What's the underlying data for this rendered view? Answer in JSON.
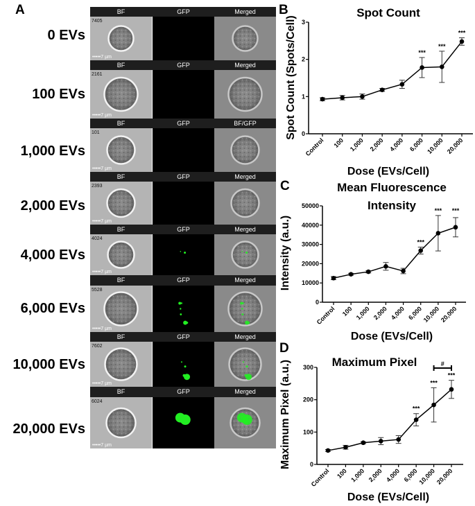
{
  "panel_a": {
    "letter": "A",
    "scale_bar": "7 µm",
    "rows": [
      {
        "dose": "0 EVs",
        "cell_id": "7405",
        "headers": [
          "BF",
          "GFP",
          "Merged"
        ]
      },
      {
        "dose": "100 EVs",
        "cell_id": "2161",
        "headers": [
          "BF",
          "GFP",
          "Merged"
        ]
      },
      {
        "dose": "1,000 EVs",
        "cell_id": "101",
        "headers": [
          "BF",
          "GFP",
          "BF/GFP"
        ]
      },
      {
        "dose": "2,000 EVs",
        "cell_id": "2393",
        "headers": [
          "BF",
          "GFP",
          "Merged"
        ]
      },
      {
        "dose": "4,000 EVs",
        "cell_id": "4024",
        "headers": [
          "BF",
          "GFP",
          "Merged"
        ]
      },
      {
        "dose": "6,000 EVs",
        "cell_id": "5528",
        "headers": [
          "BF",
          "GFP",
          "Merged"
        ]
      },
      {
        "dose": "10,000 EVs",
        "cell_id": "7602",
        "headers": [
          "BF",
          "GFP",
          "Merged"
        ]
      },
      {
        "dose": "20,000 EVs",
        "cell_id": "6024",
        "headers": [
          "BF",
          "GFP",
          "Merged"
        ]
      }
    ],
    "colors": {
      "gfp": "#22ee22",
      "header_bg": "#1e1e1e"
    }
  },
  "chart_data": [
    {
      "letter": "B",
      "type": "line",
      "title": [
        "Spot Count"
      ],
      "xlabel": "Dose (EVs/Cell)",
      "ylabel": "Spot Count (Spots/Cell)",
      "categories": [
        "Control",
        "100",
        "1,000",
        "2,000",
        "4,000",
        "6,000",
        "10,000",
        "20,000"
      ],
      "values": [
        0.93,
        0.97,
        1.0,
        1.18,
        1.33,
        1.78,
        1.8,
        2.48
      ],
      "errors": [
        0.04,
        0.06,
        0.07,
        0.04,
        0.11,
        0.27,
        0.42,
        0.1
      ],
      "ylim": [
        0,
        3
      ],
      "yticks": [
        "0",
        "1",
        "2",
        "3"
      ],
      "significance": [
        {
          "category": "6,000",
          "label": "***"
        },
        {
          "category": "10,000",
          "label": "***"
        },
        {
          "category": "20,000",
          "label": "***"
        }
      ],
      "grid": false
    },
    {
      "letter": "C",
      "type": "line",
      "title": [
        "Mean Fluorescence",
        "Intensity"
      ],
      "xlabel": "Dose (EVs/Cell)",
      "ylabel": "Intensity (a.u.)",
      "categories": [
        "Control",
        "100",
        "1,000",
        "2,000",
        "4,000",
        "6,000",
        "10,000",
        "20,000"
      ],
      "values": [
        12500,
        14500,
        15800,
        18600,
        16200,
        26800,
        35800,
        38900
      ],
      "errors": [
        800,
        500,
        600,
        2000,
        1400,
        1800,
        9200,
        5000
      ],
      "ylim": [
        0,
        50000
      ],
      "yticks": [
        "0",
        "10000",
        "20000",
        "30000",
        "40000",
        "50000"
      ],
      "significance": [
        {
          "category": "6,000",
          "label": "***"
        },
        {
          "category": "10,000",
          "label": "***"
        },
        {
          "category": "20,000",
          "label": "***"
        }
      ],
      "grid": false
    },
    {
      "letter": "D",
      "type": "line",
      "title": [
        "Maximum Pixel"
      ],
      "xlabel": "Dose (EVs/Cell)",
      "ylabel": "Maximum Pixel (a.u.)",
      "categories": [
        "Control",
        "100",
        "1,000",
        "2,000",
        "4,000",
        "6,000",
        "10,000",
        "20,000"
      ],
      "values": [
        43,
        53,
        67,
        72,
        77,
        138,
        184,
        232
      ],
      "errors": [
        3,
        6,
        3,
        11,
        12,
        19,
        53,
        28
      ],
      "ylim": [
        0,
        300
      ],
      "yticks": [
        "0",
        "100",
        "200",
        "300"
      ],
      "significance": [
        {
          "category": "6,000",
          "label": "***"
        },
        {
          "category": "10,000",
          "label": "***"
        },
        {
          "category": "20,000",
          "label": "***"
        }
      ],
      "bracket": {
        "from": "10,000",
        "to": "20,000",
        "label": "#"
      },
      "grid": false
    }
  ]
}
